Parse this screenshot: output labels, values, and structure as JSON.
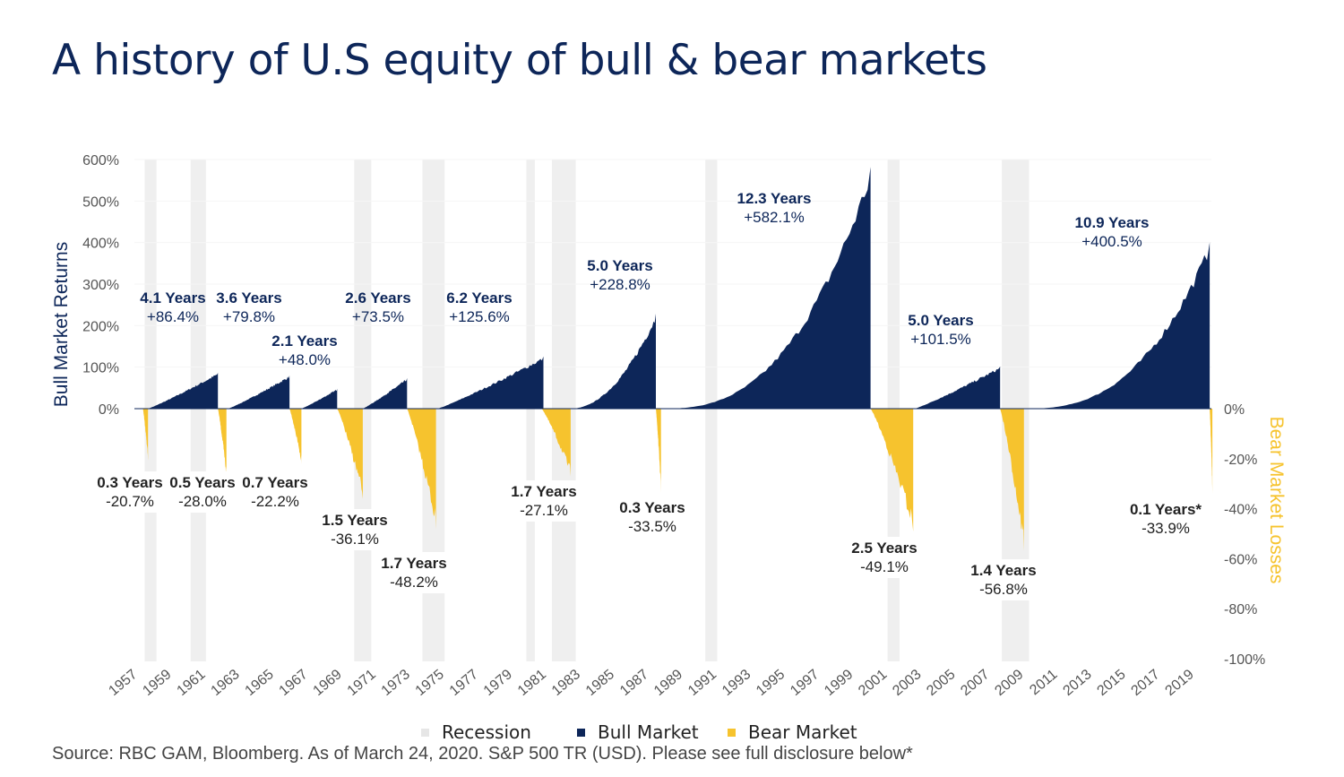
{
  "title": "A history of U.S equity of bull & bear markets",
  "source": "Source: RBC GAM, Bloomberg. As of March 24, 2020. S&P 500 TR (USD). Please see full disclosure below*",
  "colors": {
    "bull": "#0d2659",
    "bear": "#f6c32e",
    "recession": "#efefef",
    "title": "#0d2659",
    "bear_axis_title": "#f6c32e"
  },
  "chart_data": {
    "type": "area",
    "x_axis": {
      "ticks": [
        "1957",
        "1959",
        "1961",
        "1963",
        "1965",
        "1967",
        "1969",
        "1971",
        "1973",
        "1975",
        "1977",
        "1979",
        "1981",
        "1983",
        "1985",
        "1987",
        "1989",
        "1991",
        "1993",
        "1995",
        "1997",
        "1999",
        "2001",
        "2003",
        "2005",
        "2007",
        "2009",
        "2011",
        "2013",
        "2015",
        "2017",
        "2019"
      ]
    },
    "y_left": {
      "label": "Bull Market Returns",
      "ticks": [
        "600%",
        "500%",
        "400%",
        "300%",
        "200%",
        "100%",
        "0%"
      ],
      "range": [
        0,
        600
      ]
    },
    "y_right": {
      "label": "Bear Market Losses",
      "ticks": [
        "0%",
        "-20%",
        "-40%",
        "-60%",
        "-80%",
        "-100%"
      ],
      "range": [
        -100,
        0
      ]
    },
    "legend": [
      {
        "label": "Recession",
        "key": "recession"
      },
      {
        "label": "Bull Market",
        "key": "bull"
      },
      {
        "label": "Bear Market",
        "key": "bear"
      }
    ],
    "recessions": [
      [
        1957.6,
        1958.3
      ],
      [
        1960.3,
        1961.2
      ],
      [
        1969.9,
        1970.9
      ],
      [
        1973.9,
        1975.2
      ],
      [
        1980.0,
        1980.5
      ],
      [
        1981.5,
        1982.9
      ],
      [
        1990.5,
        1991.2
      ],
      [
        2001.2,
        2001.9
      ],
      [
        2007.9,
        2009.5
      ]
    ],
    "bull_markets": [
      {
        "start": 1957.8,
        "duration_label": "4.1 Years",
        "return_label": "+86.4%",
        "years": 4.1,
        "return": 86.4
      },
      {
        "start": 1962.5,
        "duration_label": "3.6 Years",
        "return_label": "+79.8%",
        "years": 3.6,
        "return": 79.8
      },
      {
        "start": 1966.8,
        "duration_label": "2.1 Years",
        "return_label": "+48.0%",
        "years": 2.1,
        "return": 48.0
      },
      {
        "start": 1970.4,
        "duration_label": "2.6 Years",
        "return_label": "+73.5%",
        "years": 2.6,
        "return": 73.5
      },
      {
        "start": 1974.8,
        "duration_label": "6.2 Years",
        "return_label": "+125.6%",
        "years": 6.2,
        "return": 125.6
      },
      {
        "start": 1982.6,
        "duration_label": "5.0 Years",
        "return_label": "+228.8%",
        "years": 5.0,
        "return": 228.8
      },
      {
        "start": 1987.9,
        "duration_label": "12.3 Years",
        "return_label": "+582.1%",
        "years": 12.3,
        "return": 582.1
      },
      {
        "start": 2002.8,
        "duration_label": "5.0 Years",
        "return_label": "+101.5%",
        "years": 5.0,
        "return": 101.5
      },
      {
        "start": 2009.2,
        "duration_label": "10.9 Years",
        "return_label": "+400.5%",
        "years": 10.9,
        "return": 400.5
      }
    ],
    "bear_markets": [
      {
        "start": 1957.5,
        "duration_label": "0.3 Years",
        "loss_label": "-20.7%",
        "years": 0.3,
        "loss": -20.7
      },
      {
        "start": 1961.9,
        "duration_label": "0.5 Years",
        "loss_label": "-28.0%",
        "years": 0.5,
        "loss": -28.0
      },
      {
        "start": 1966.1,
        "duration_label": "0.7 Years",
        "loss_label": "-22.2%",
        "years": 0.7,
        "loss": -22.2
      },
      {
        "start": 1968.9,
        "duration_label": "1.5 Years",
        "loss_label": "-36.1%",
        "years": 1.5,
        "loss": -36.1
      },
      {
        "start": 1973.0,
        "duration_label": "1.7 Years",
        "loss_label": "-48.2%",
        "years": 1.7,
        "loss": -48.2
      },
      {
        "start": 1980.9,
        "duration_label": "1.7 Years",
        "loss_label": "-27.1%",
        "years": 1.7,
        "loss": -27.1
      },
      {
        "start": 1987.6,
        "duration_label": "0.3 Years",
        "loss_label": "-33.5%",
        "years": 0.3,
        "loss": -33.5
      },
      {
        "start": 2000.2,
        "duration_label": "2.5 Years",
        "loss_label": "-49.1%",
        "years": 2.5,
        "loss": -49.1
      },
      {
        "start": 2007.8,
        "duration_label": "1.4 Years",
        "loss_label": "-56.8%",
        "years": 1.4,
        "loss": -56.8
      },
      {
        "start": 2020.1,
        "duration_label": "0.1 Years*",
        "loss_label": "-33.9%",
        "years": 0.1,
        "loss": -33.9
      }
    ]
  }
}
